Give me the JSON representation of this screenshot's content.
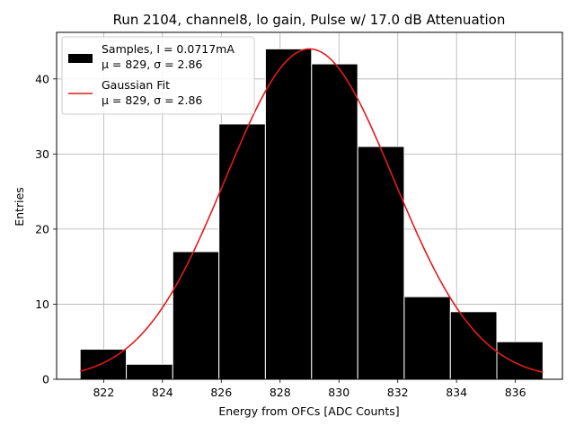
{
  "chart_data": {
    "type": "bar",
    "title": "Run 2104, channel8, lo gain, Pulse w/ 17.0 dB Attenuation",
    "xlabel": "Energy from OFCs [ADC Counts]",
    "ylabel": "Entries",
    "xlim": [
      820.4,
      837.6
    ],
    "ylim": [
      0,
      46.2
    ],
    "grid": true,
    "legend_placement": "top-left",
    "xticks": [
      822,
      824,
      826,
      828,
      830,
      832,
      834,
      836
    ],
    "yticks": [
      0,
      10,
      20,
      30,
      40
    ],
    "histogram": {
      "name_line1": "Samples, I = 0.0717mA",
      "name_line2": "$\\mu$ = 829, $\\sigma$ = 2.86",
      "name_line2_display": "μ = 829, σ = 2.86",
      "color": "#000000",
      "bin_edges": [
        821.2,
        822.77,
        824.35,
        825.92,
        827.5,
        829.07,
        830.64,
        832.22,
        833.79,
        835.37,
        836.94
      ],
      "counts": [
        4,
        2,
        17,
        34,
        44,
        42,
        31,
        11,
        9,
        5
      ]
    },
    "fit": {
      "name_line1": "Gaussian Fit",
      "name_line2": "$\\mu$ = 829, $\\sigma$ = 2.86",
      "name_line2_display": "μ = 829, σ = 2.86",
      "color": "#e41a1c",
      "mu": 829.0,
      "sigma": 2.86,
      "amplitude": 44.0,
      "x_range": [
        821.2,
        836.94
      ]
    }
  }
}
